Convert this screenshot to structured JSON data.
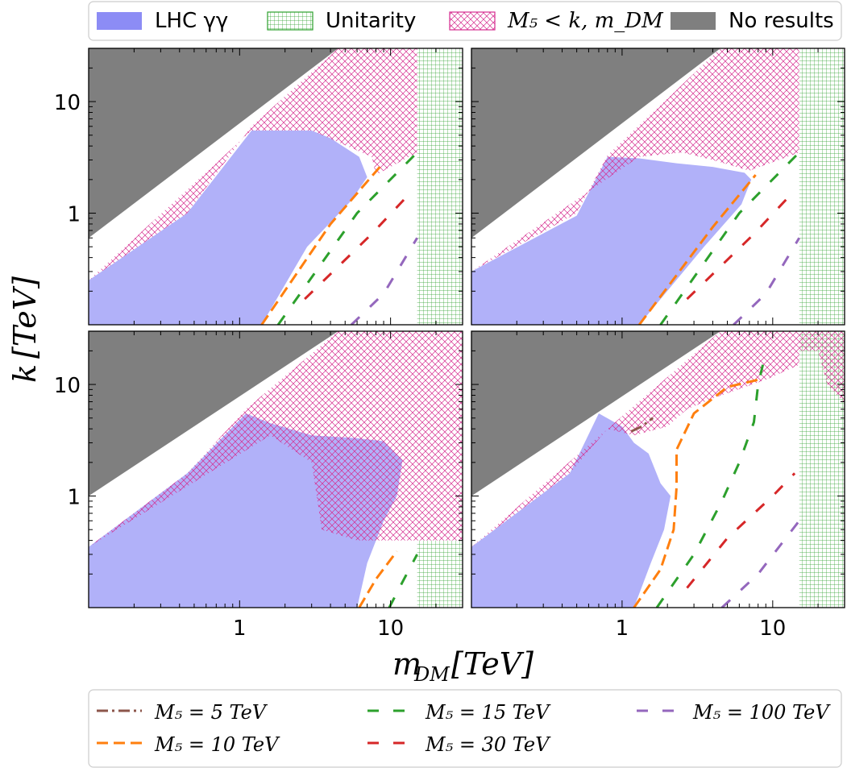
{
  "chart_data": {
    "type": "region",
    "xlabel_main": "m",
    "xlabel_sub": "DM",
    "xlabel_unit": "[TeV]",
    "ylabel_main": "k",
    "ylabel_unit": "[TeV]",
    "x_scale": "log",
    "y_scale": "log",
    "xlim": [
      0.1,
      30
    ],
    "ylim": [
      0.1,
      30
    ],
    "x_ticks": [
      {
        "value": 1,
        "label": "1"
      },
      {
        "value": 10,
        "label": "10"
      }
    ],
    "y_ticks": [
      {
        "value": 1,
        "label": "1"
      },
      {
        "value": 10,
        "label": "10"
      }
    ],
    "top_legend": [
      {
        "label": "LHC γγ",
        "color": "#8c8cf5",
        "style": "fill"
      },
      {
        "label": "Unitarity",
        "color": "#2ca02c",
        "style": "grid-hatch"
      },
      {
        "label": "M₅ < k, m_DM",
        "color": "#d62c8f",
        "style": "cross-hatch"
      },
      {
        "label": "No results",
        "color": "#7f7f7f",
        "style": "fill"
      }
    ],
    "bottom_legend": [
      {
        "label": "M₅ = 5 TeV",
        "color": "#8c564b",
        "style": "dashdot"
      },
      {
        "label": "M₅ = 10 TeV",
        "color": "#ff7f0e",
        "style": "dash"
      },
      {
        "label": "M₅ = 15 TeV",
        "color": "#2ca02c",
        "style": "dash"
      },
      {
        "label": "M₅ = 30 TeV",
        "color": "#d62728",
        "style": "dash"
      },
      {
        "label": "M₅ = 100 TeV",
        "color": "#9467bd",
        "style": "dash"
      }
    ],
    "panels": [
      {
        "name": "top-left",
        "no_results": [
          [
            0.1,
            0.6
          ],
          [
            4.5,
            30
          ],
          [
            0.1,
            30
          ]
        ],
        "cross_hatch": [
          [
            0.1,
            0.25
          ],
          [
            0.45,
            1.0
          ],
          [
            1.2,
            6.0
          ],
          [
            4.5,
            30
          ],
          [
            15,
            30
          ],
          [
            15,
            3.5
          ],
          [
            8,
            2.2
          ],
          [
            7.5,
            3.2
          ],
          [
            3,
            5.5
          ],
          [
            1.2,
            5.5
          ]
        ],
        "lhc_region": [
          [
            0.1,
            0.1
          ],
          [
            0.1,
            0.25
          ],
          [
            0.45,
            1.0
          ],
          [
            1.2,
            5.5
          ],
          [
            3,
            5.5
          ],
          [
            4,
            4.7
          ],
          [
            6.2,
            3.2
          ],
          [
            7,
            2.1
          ],
          [
            5.5,
            1.3
          ],
          [
            2.8,
            0.5
          ],
          [
            1.4,
            0.1
          ]
        ],
        "lhc_hatched_overlap_cut": [
          [
            1.0,
            0.55
          ],
          [
            1.1,
            0.82
          ],
          [
            3,
            1.05
          ],
          [
            6,
            1.6
          ]
        ],
        "unitarity_xmin": 15,
        "unitarity_ymax": 30,
        "contours": [
          {
            "name": "M₅ = 10 TeV",
            "points": [
              [
                1.4,
                0.1
              ],
              [
                4,
                0.8
              ],
              [
                8.5,
                2.6
              ]
            ]
          },
          {
            "name": "M₅ = 15 TeV",
            "points": [
              [
                1.8,
                0.1
              ],
              [
                6,
                1.0
              ],
              [
                15,
                3.5
              ]
            ]
          },
          {
            "name": "M₅ = 30 TeV",
            "points": [
              [
                2.7,
                0.17
              ],
              [
                7.5,
                0.65
              ],
              [
                14,
                1.6
              ]
            ]
          },
          {
            "name": "M₅ = 100 TeV",
            "points": [
              [
                5.5,
                0.1
              ],
              [
                9,
                0.19
              ],
              [
                15,
                0.6
              ]
            ]
          }
        ]
      },
      {
        "name": "top-right",
        "no_results": [
          [
            0.1,
            0.6
          ],
          [
            4.5,
            30
          ],
          [
            0.1,
            30
          ]
        ],
        "cross_hatch": [
          [
            0.1,
            0.3
          ],
          [
            0.5,
            1.0
          ],
          [
            0.8,
            3.3
          ],
          [
            4.5,
            30
          ],
          [
            15,
            30
          ],
          [
            15,
            3.5
          ],
          [
            7,
            2.4
          ],
          [
            4,
            3.0
          ],
          [
            2.5,
            3.5
          ],
          [
            1.3,
            3.2
          ]
        ],
        "lhc_region": [
          [
            0.1,
            0.1
          ],
          [
            0.1,
            0.3
          ],
          [
            0.5,
            0.95
          ],
          [
            0.8,
            3.2
          ],
          [
            1.3,
            3.1
          ],
          [
            2.3,
            2.8
          ],
          [
            4,
            2.6
          ],
          [
            6.5,
            2.3
          ],
          [
            7.2,
            2.0
          ],
          [
            6.2,
            1.2
          ],
          [
            3.5,
            0.5
          ],
          [
            1.3,
            0.1
          ]
        ],
        "lhc_hatched_overlap_cut": [
          [
            3.6,
            1.5
          ],
          [
            3.8,
            2.6
          ]
        ],
        "unitarity_xmin": 15,
        "unitarity_ymax": 30,
        "contours": [
          {
            "name": "M₅ = 10 TeV",
            "points": [
              [
                1.3,
                0.1
              ],
              [
                4,
                0.75
              ],
              [
                7.7,
                2.2
              ]
            ]
          },
          {
            "name": "M₅ = 15 TeV",
            "points": [
              [
                1.8,
                0.1
              ],
              [
                6,
                1.0
              ],
              [
                15,
                3.5
              ]
            ]
          },
          {
            "name": "M₅ = 30 TeV",
            "points": [
              [
                2.7,
                0.17
              ],
              [
                7.5,
                0.65
              ],
              [
                14,
                1.6
              ]
            ]
          },
          {
            "name": "M₅ = 100 TeV",
            "points": [
              [
                5.5,
                0.1
              ],
              [
                9,
                0.19
              ],
              [
                15,
                0.6
              ]
            ]
          }
        ]
      },
      {
        "name": "bottom-left",
        "no_results": [
          [
            0.1,
            1.0
          ],
          [
            4.5,
            30
          ],
          [
            0.1,
            30
          ]
        ],
        "cross_hatch": [
          [
            0.1,
            0.35
          ],
          [
            0.45,
            1.6
          ],
          [
            1.1,
            6.0
          ],
          [
            4.5,
            30
          ],
          [
            30,
            30
          ],
          [
            30,
            0.4
          ],
          [
            10,
            0.4
          ],
          [
            8,
            0.4
          ],
          [
            6,
            0.4
          ],
          [
            3.5,
            0.5
          ],
          [
            3,
            2.0
          ],
          [
            1.6,
            3.5
          ]
        ],
        "lhc_region": [
          [
            0.1,
            0.1
          ],
          [
            0.1,
            0.35
          ],
          [
            0.45,
            1.6
          ],
          [
            1.1,
            5.5
          ],
          [
            1.6,
            4.5
          ],
          [
            3,
            3.5
          ],
          [
            6,
            3.3
          ],
          [
            9,
            3.1
          ],
          [
            12,
            2.1
          ],
          [
            11,
            1.0
          ],
          [
            9,
            0.6
          ],
          [
            7,
            0.25
          ],
          [
            6,
            0.1
          ]
        ],
        "lhc_hatched_overlap_cut": [
          [
            3.5,
            0.5
          ],
          [
            3,
            2.0
          ],
          [
            5,
            3.0
          ],
          [
            9,
            3.1
          ]
        ],
        "unitarity_xmin": 15,
        "unitarity_ymax": 0.4,
        "contours": [
          {
            "name": "M₅ = 10 TeV",
            "points": [
              [
                6.2,
                0.1
              ],
              [
                8,
                0.18
              ],
              [
                11,
                0.32
              ]
            ]
          },
          {
            "name": "M₅ = 15 TeV",
            "points": [
              [
                9.8,
                0.1
              ],
              [
                12,
                0.17
              ],
              [
                15,
                0.3
              ]
            ]
          }
        ]
      },
      {
        "name": "bottom-right",
        "no_results": [
          [
            0.1,
            1.0
          ],
          [
            4.5,
            30
          ],
          [
            0.1,
            30
          ]
        ],
        "cross_hatch": [
          [
            0.1,
            0.35
          ],
          [
            0.45,
            1.6
          ],
          [
            0.8,
            4.0
          ],
          [
            4.5,
            30
          ],
          [
            15,
            30
          ],
          [
            15,
            15
          ],
          [
            9,
            11
          ],
          [
            4,
            7.5
          ],
          [
            2.7,
            6.0
          ],
          [
            2,
            4.2
          ],
          [
            1.2,
            3.5
          ],
          [
            0.8,
            4.0
          ]
        ],
        "cross_hatch_corner": [
          [
            15,
            30
          ],
          [
            30,
            30
          ],
          [
            30,
            6.8
          ],
          [
            23,
            10
          ],
          [
            20,
            20
          ],
          [
            15,
            20
          ]
        ],
        "lhc_region": [
          [
            0.1,
            0.1
          ],
          [
            0.1,
            0.35
          ],
          [
            0.45,
            1.6
          ],
          [
            0.7,
            5.5
          ],
          [
            1.0,
            4.2
          ],
          [
            1.2,
            3.0
          ],
          [
            1.5,
            2.4
          ],
          [
            1.8,
            1.3
          ],
          [
            2.1,
            1.0
          ],
          [
            1.9,
            0.5
          ],
          [
            1.55,
            0.25
          ],
          [
            1.2,
            0.1
          ]
        ],
        "unitarity_xmin": 15,
        "unitarity_ymax": 30,
        "contours": [
          {
            "name": "M₅ = 5 TeV",
            "points": [
              [
                1.15,
                3.8
              ],
              [
                1.35,
                4.2
              ],
              [
                1.6,
                5.0
              ]
            ]
          },
          {
            "name": "M₅ = 10 TeV",
            "points": [
              [
                1.2,
                0.1
              ],
              [
                1.8,
                0.22
              ],
              [
                2.2,
                0.5
              ],
              [
                2.3,
                1.2
              ],
              [
                2.3,
                2.6
              ],
              [
                3.0,
                5.5
              ],
              [
                5,
                9.5
              ],
              [
                8,
                11
              ]
            ]
          },
          {
            "name": "M₅ = 15 TeV",
            "points": [
              [
                1.7,
                0.1
              ],
              [
                3,
                0.3
              ],
              [
                4.6,
                0.9
              ],
              [
                6,
                2.0
              ],
              [
                7.5,
                4.6
              ],
              [
                8,
                10
              ],
              [
                8.6,
                15
              ]
            ]
          },
          {
            "name": "M₅ = 30 TeV",
            "points": [
              [
                2.7,
                0.15
              ],
              [
                5,
                0.42
              ],
              [
                10,
                1.0
              ],
              [
                14,
                1.6
              ]
            ]
          },
          {
            "name": "M₅ = 100 TeV",
            "points": [
              [
                4.6,
                0.1
              ],
              [
                8,
                0.2
              ],
              [
                15,
                0.6
              ]
            ]
          }
        ]
      }
    ]
  }
}
